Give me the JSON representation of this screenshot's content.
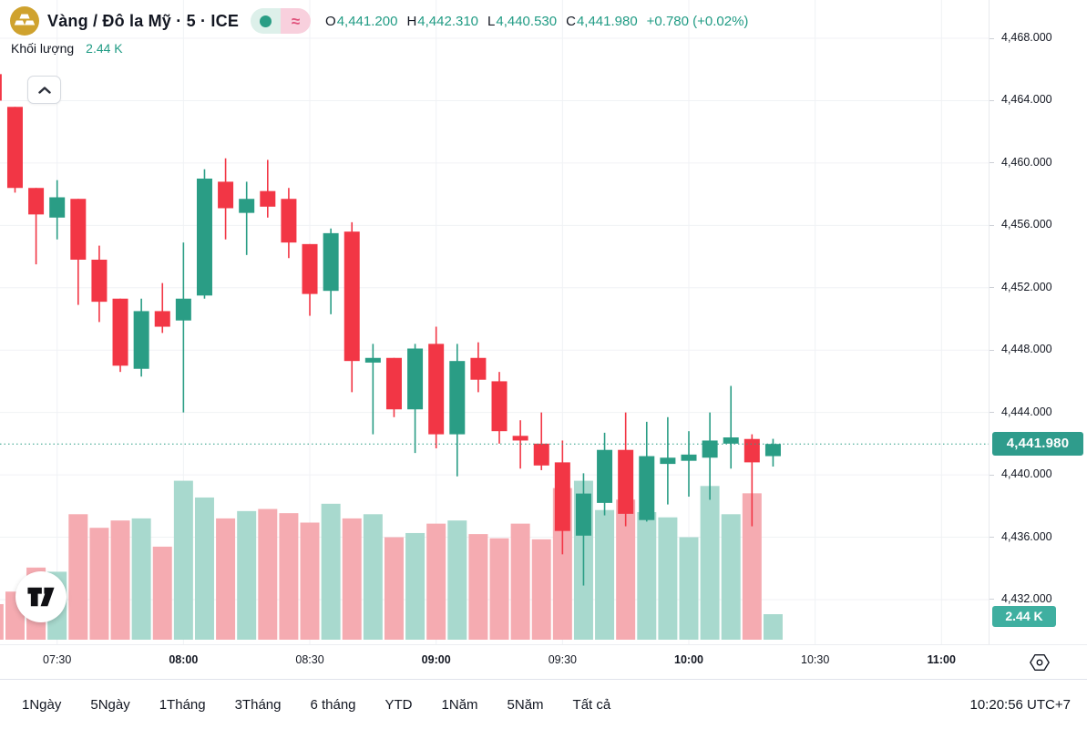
{
  "header": {
    "symbol_title": "Vàng / Đô la Mỹ · 5 · ICE",
    "approx_symbol": "≈",
    "ohlc": {
      "open_label": "O",
      "open": "4,441.200",
      "high_label": "H",
      "high": "4,442.310",
      "low_label": "L",
      "low": "4,440.530",
      "close_label": "C",
      "close": "4,441.980",
      "change": "+0.780 (+0.02%)"
    },
    "volume_row": {
      "label": "Khối lượng",
      "value": "2.44 K"
    }
  },
  "price_axis": {
    "ticks": [
      {
        "value": 4468,
        "label": "4,468.000"
      },
      {
        "value": 4464,
        "label": "4,464.000"
      },
      {
        "value": 4460,
        "label": "4,460.000"
      },
      {
        "value": 4456,
        "label": "4,456.000"
      },
      {
        "value": 4452,
        "label": "4,452.000"
      },
      {
        "value": 4448,
        "label": "4,448.000"
      },
      {
        "value": 4444,
        "label": "4,444.000"
      },
      {
        "value": 4440,
        "label": "4,440.000"
      },
      {
        "value": 4436,
        "label": "4,436.000"
      },
      {
        "value": 4432,
        "label": "4,432.000"
      }
    ],
    "last_price_badge": {
      "label": "4,441.980",
      "value": 4441.98
    },
    "volume_badge": {
      "label": "2.44 K"
    }
  },
  "time_axis": {
    "ticks": [
      {
        "time": "07:30",
        "bold": false
      },
      {
        "time": "08:00",
        "bold": true
      },
      {
        "time": "08:30",
        "bold": false
      },
      {
        "time": "09:00",
        "bold": true
      },
      {
        "time": "09:30",
        "bold": false
      },
      {
        "time": "10:00",
        "bold": true
      },
      {
        "time": "10:30",
        "bold": false
      },
      {
        "time": "11:00",
        "bold": true
      }
    ]
  },
  "toolbar": {
    "ranges": [
      "1Ngày",
      "5Ngày",
      "1Tháng",
      "3Tháng",
      "6 tháng",
      "YTD",
      "1Năm",
      "5Năm",
      "Tất cả"
    ],
    "clock": "10:20:56 UTC+7"
  },
  "colors": {
    "up": "#2A9D85",
    "down": "#F23645",
    "vol_up": "#A8D9CE",
    "vol_down": "#F5ABB1",
    "badge_price": "#2F9C8C",
    "badge_volume": "#3FAFA0",
    "grid": "#F0F2F5",
    "text": "#131722",
    "value_green": "#209B84",
    "gold": "#CFA22E",
    "pill_green_bg": "#DDF0EA",
    "pill_pink_bg": "#F8D0DD",
    "pill_pink_fg": "#E0507A"
  },
  "chart_data": {
    "type": "candlestick_with_volume",
    "title": "Vàng / Đô la Mỹ · 5 · ICE",
    "interval": "5",
    "exchange": "ICE",
    "visible_price_range": [
      4432,
      4468
    ],
    "visible_time_range": [
      "07:15",
      "11:00"
    ],
    "grid": true,
    "last_price": 4441.98,
    "last_volume_k": 2.44,
    "volume_unit": "K",
    "candles": [
      {
        "t": "07:15",
        "o": 4465.7,
        "h": 4465.7,
        "l": 4464.0,
        "c": 4464.0,
        "v": 3.4
      },
      {
        "t": "07:20",
        "o": 4463.6,
        "h": 4463.6,
        "l": 4458.1,
        "c": 4458.4,
        "v": 4.6
      },
      {
        "t": "07:25",
        "o": 4458.4,
        "h": 4458.4,
        "l": 4453.5,
        "c": 4456.7,
        "v": 6.9
      },
      {
        "t": "07:30",
        "o": 4456.5,
        "h": 4458.9,
        "l": 4455.1,
        "c": 4457.8,
        "v": 6.5
      },
      {
        "t": "07:35",
        "o": 4457.7,
        "h": 4457.7,
        "l": 4450.9,
        "c": 4453.8,
        "v": 12.0
      },
      {
        "t": "07:40",
        "o": 4453.8,
        "h": 4454.7,
        "l": 4449.8,
        "c": 4451.1,
        "v": 10.7
      },
      {
        "t": "07:45",
        "o": 4451.3,
        "h": 4451.3,
        "l": 4446.6,
        "c": 4447.0,
        "v": 11.4
      },
      {
        "t": "07:50",
        "o": 4446.8,
        "h": 4451.3,
        "l": 4446.3,
        "c": 4450.5,
        "v": 11.6
      },
      {
        "t": "07:55",
        "o": 4450.5,
        "h": 4452.3,
        "l": 4449.1,
        "c": 4449.5,
        "v": 8.9
      },
      {
        "t": "08:00",
        "o": 4449.9,
        "h": 4454.9,
        "l": 4444.0,
        "c": 4451.3,
        "v": 15.2
      },
      {
        "t": "08:05",
        "o": 4451.5,
        "h": 4459.6,
        "l": 4451.3,
        "c": 4459.0,
        "v": 13.6
      },
      {
        "t": "08:10",
        "o": 4458.8,
        "h": 4460.3,
        "l": 4455.1,
        "c": 4457.1,
        "v": 11.6
      },
      {
        "t": "08:15",
        "o": 4456.8,
        "h": 4458.8,
        "l": 4454.1,
        "c": 4457.7,
        "v": 12.3
      },
      {
        "t": "08:20",
        "o": 4458.2,
        "h": 4460.2,
        "l": 4456.5,
        "c": 4457.2,
        "v": 12.5
      },
      {
        "t": "08:25",
        "o": 4457.7,
        "h": 4458.4,
        "l": 4453.9,
        "c": 4454.9,
        "v": 12.1
      },
      {
        "t": "08:30",
        "o": 4454.8,
        "h": 4454.8,
        "l": 4450.2,
        "c": 4451.6,
        "v": 11.2
      },
      {
        "t": "08:35",
        "o": 4451.8,
        "h": 4455.8,
        "l": 4450.3,
        "c": 4455.5,
        "v": 13.0
      },
      {
        "t": "08:40",
        "o": 4455.6,
        "h": 4456.2,
        "l": 4445.3,
        "c": 4447.3,
        "v": 11.6
      },
      {
        "t": "08:45",
        "o": 4447.2,
        "h": 4448.4,
        "l": 4442.6,
        "c": 4447.5,
        "v": 12.0
      },
      {
        "t": "08:50",
        "o": 4447.5,
        "h": 4447.5,
        "l": 4443.7,
        "c": 4444.2,
        "v": 9.8
      },
      {
        "t": "08:55",
        "o": 4444.2,
        "h": 4448.4,
        "l": 4441.4,
        "c": 4448.1,
        "v": 10.2
      },
      {
        "t": "09:00",
        "o": 4448.4,
        "h": 4449.5,
        "l": 4441.7,
        "c": 4442.6,
        "v": 11.1
      },
      {
        "t": "09:05",
        "o": 4442.6,
        "h": 4448.4,
        "l": 4439.9,
        "c": 4447.3,
        "v": 11.4
      },
      {
        "t": "09:10",
        "o": 4447.5,
        "h": 4448.5,
        "l": 4445.3,
        "c": 4446.1,
        "v": 10.1
      },
      {
        "t": "09:15",
        "o": 4446.0,
        "h": 4446.6,
        "l": 4442.0,
        "c": 4442.8,
        "v": 9.7
      },
      {
        "t": "09:20",
        "o": 4442.5,
        "h": 4443.5,
        "l": 4440.4,
        "c": 4442.2,
        "v": 11.1
      },
      {
        "t": "09:25",
        "o": 4442.0,
        "h": 4444.0,
        "l": 4440.3,
        "c": 4440.6,
        "v": 9.6
      },
      {
        "t": "09:30",
        "o": 4440.8,
        "h": 4442.2,
        "l": 4434.9,
        "c": 4436.4,
        "v": 14.5
      },
      {
        "t": "09:35",
        "o": 4436.1,
        "h": 4440.1,
        "l": 4432.9,
        "c": 4438.8,
        "v": 15.2
      },
      {
        "t": "09:40",
        "o": 4438.2,
        "h": 4442.7,
        "l": 4437.4,
        "c": 4441.6,
        "v": 12.4
      },
      {
        "t": "09:45",
        "o": 4441.6,
        "h": 4444.0,
        "l": 4436.7,
        "c": 4437.5,
        "v": 13.4
      },
      {
        "t": "09:50",
        "o": 4437.1,
        "h": 4443.4,
        "l": 4437.0,
        "c": 4441.2,
        "v": 12.2
      },
      {
        "t": "09:55",
        "o": 4440.7,
        "h": 4443.7,
        "l": 4438.1,
        "c": 4441.1,
        "v": 11.7
      },
      {
        "t": "10:00",
        "o": 4440.9,
        "h": 4442.8,
        "l": 4438.6,
        "c": 4441.3,
        "v": 9.8
      },
      {
        "t": "10:05",
        "o": 4441.1,
        "h": 4444.0,
        "l": 4438.4,
        "c": 4442.2,
        "v": 14.7
      },
      {
        "t": "10:10",
        "o": 4442.0,
        "h": 4445.7,
        "l": 4440.4,
        "c": 4442.4,
        "v": 12.0
      },
      {
        "t": "10:15",
        "o": 4442.3,
        "h": 4442.6,
        "l": 4436.7,
        "c": 4440.8,
        "v": 14.0
      },
      {
        "t": "10:20",
        "o": 4441.2,
        "h": 4442.31,
        "l": 4440.53,
        "c": 4441.98,
        "v": 2.44
      }
    ]
  }
}
